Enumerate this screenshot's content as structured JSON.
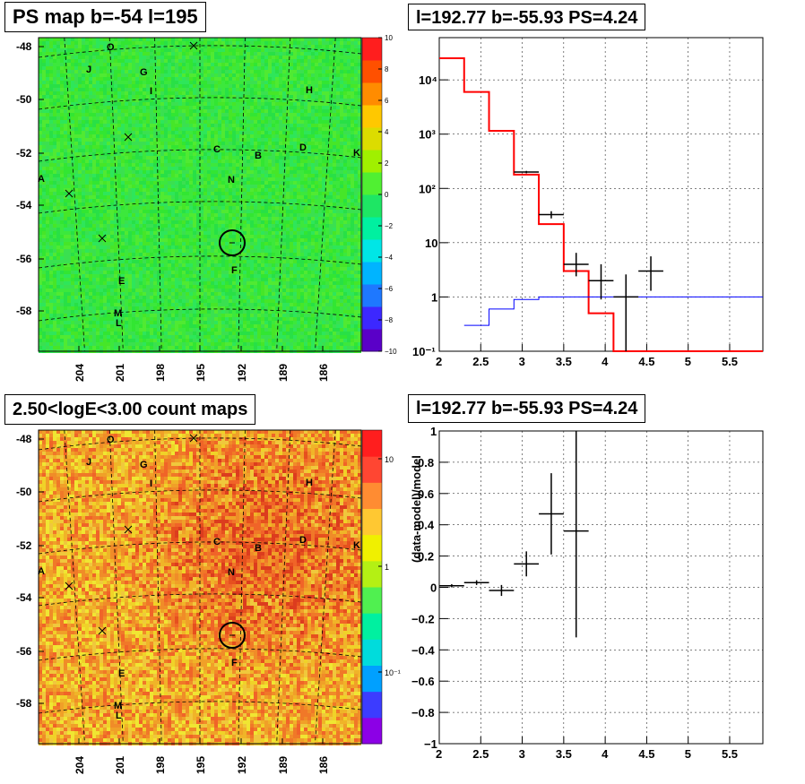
{
  "panels": {
    "ps_map": {
      "title": "PS map b=-54 l=195",
      "colorbar_ticks": [
        "10",
        "8",
        "6",
        "4",
        "2",
        "0",
        "−2",
        "−4",
        "−6",
        "−8",
        "−10"
      ],
      "colors": {
        "bg": "#2ee62e"
      }
    },
    "count_map": {
      "title": "2.50<logE<3.00 count maps",
      "colorbar_ticks": [
        "10",
        "1",
        "10^-1"
      ],
      "colors": {
        "bg": "#f0a040"
      }
    },
    "spectrum": {
      "title": "l=192.77 b=-55.93 PS=4.24"
    },
    "residual": {
      "title": "l=192.77 b=-55.93 PS=4.24",
      "ylabel": "(data-model)/model"
    }
  },
  "map_axes": {
    "y_ticks": [
      "-48",
      "-50",
      "-52",
      "-54",
      "-56",
      "-58"
    ],
    "x_ticks": [
      "204",
      "201",
      "198",
      "195",
      "192",
      "189",
      "186"
    ]
  },
  "source_labels": [
    {
      "name": "O"
    },
    {
      "name": "J"
    },
    {
      "name": "G"
    },
    {
      "name": "I"
    },
    {
      "name": "H"
    },
    {
      "name": "C"
    },
    {
      "name": "B"
    },
    {
      "name": "D"
    },
    {
      "name": "K"
    },
    {
      "name": "A"
    },
    {
      "name": "N"
    },
    {
      "name": "F"
    },
    {
      "name": "E"
    },
    {
      "name": "M"
    },
    {
      "name": "L"
    }
  ],
  "chart_data": [
    {
      "type": "heatmap",
      "title": "PS map b=-54 l=195",
      "ylim": [
        -59.5,
        -47.6
      ],
      "zlim": [
        -10,
        10
      ],
      "y_ticks": [
        -48,
        -50,
        -52,
        -54,
        -56,
        -58
      ],
      "x_ticks": [
        204,
        201,
        198,
        195,
        192,
        189,
        186
      ]
    },
    {
      "type": "heatmap",
      "title": "2.50<logE<3.00 count maps",
      "ylim": [
        -59.5,
        -47.6
      ],
      "z_scale": "log",
      "y_ticks": [
        -48,
        -50,
        -52,
        -54,
        -56,
        -58
      ],
      "x_ticks": [
        204,
        201,
        198,
        195,
        192,
        189,
        186
      ]
    },
    {
      "type": "line",
      "title": "l=192.77 b=-55.93 PS=4.24",
      "x_scale": "linear",
      "y_scale": "log",
      "xlim": [
        2,
        5.9
      ],
      "ylim": [
        0.1,
        60000
      ],
      "x_ticks": [
        2,
        2.5,
        3,
        3.5,
        4,
        4.5,
        5,
        5.5
      ],
      "y_ticks": [
        "10^-1",
        "1",
        "10",
        "10^2",
        "10^3",
        "10^4"
      ],
      "grid": true,
      "series": [
        {
          "kind": "step",
          "color": "#ff0000",
          "edges": [
            2,
            2.3,
            2.6,
            2.9,
            3.2,
            3.5,
            3.8,
            4.1,
            4.4,
            5.9
          ],
          "values": [
            25000,
            6000,
            1150,
            180,
            22,
            3,
            0.5,
            0.1,
            0.1
          ]
        },
        {
          "kind": "step",
          "color": "#0000ff",
          "edges": [
            2.3,
            2.6,
            2.9,
            3.2,
            3.5,
            3.8,
            4.1,
            4.4,
            5.9
          ],
          "values": [
            0.3,
            0.6,
            0.9,
            1.0,
            1.0,
            1.0,
            1.0,
            1.0
          ]
        },
        {
          "kind": "errorbar",
          "color": "#000000",
          "x": [
            3.05,
            3.35,
            3.65,
            3.95,
            4.25,
            4.55
          ],
          "y": [
            200,
            33,
            4,
            2,
            1,
            3
          ],
          "xerr": [
            0.15,
            0.15,
            0.15,
            0.15,
            0.15,
            0.15
          ],
          "ylo": [
            190,
            28,
            2.4,
            0.9,
            0.1,
            1.3
          ],
          "yhi": [
            210,
            38,
            6.5,
            4,
            2.6,
            5.6
          ]
        }
      ]
    },
    {
      "type": "scatter",
      "title": "l=192.77 b=-55.93 PS=4.24",
      "ylabel": "(data-model)/model",
      "xlim": [
        2,
        5.9
      ],
      "ylim": [
        -1,
        1
      ],
      "x_ticks": [
        2,
        2.5,
        3,
        3.5,
        4,
        4.5,
        5,
        5.5
      ],
      "y_ticks": [
        -1,
        -0.8,
        -0.6,
        -0.4,
        -0.2,
        0,
        0.2,
        0.4,
        0.6,
        0.8,
        1
      ],
      "grid": true,
      "series": [
        {
          "kind": "errorbar",
          "color": "#000000",
          "x": [
            2.15,
            2.45,
            2.75,
            3.05,
            3.35,
            3.65
          ],
          "y": [
            0.01,
            0.03,
            -0.02,
            0.15,
            0.47,
            0.36
          ],
          "xerr": [
            0.15,
            0.15,
            0.15,
            0.15,
            0.15,
            0.15
          ],
          "yerr": [
            0.01,
            0.015,
            0.035,
            0.08,
            0.26,
            0.68
          ],
          "yhi_clip": [
            null,
            null,
            null,
            null,
            null,
            1.0
          ]
        }
      ]
    }
  ]
}
